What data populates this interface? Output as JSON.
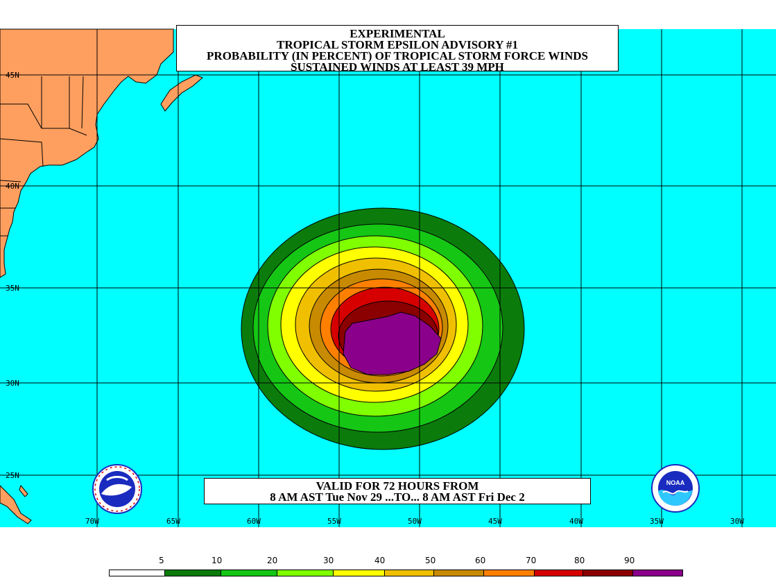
{
  "title": {
    "line1": "EXPERIMENTAL",
    "line2": "TROPICAL STORM EPSILON ADVISORY #1",
    "line3": "PROBABILITY (IN PERCENT) OF TROPICAL STORM FORCE WINDS",
    "line4": "SUSTAINED WINDS AT LEAST 39 MPH"
  },
  "valid": {
    "line1": "VALID FOR 72 HOURS FROM",
    "line2": "8 AM AST Tue Nov 29 ...TO... 8 AM AST Fri Dec 2"
  },
  "latitude_labels": [
    "45N",
    "40N",
    "35N",
    "30N",
    "25N"
  ],
  "longitude_labels": [
    "70W",
    "65W",
    "60W",
    "55W",
    "50W",
    "45W",
    "40W",
    "35W",
    "30W"
  ],
  "legend": {
    "thresholds": [
      "5",
      "10",
      "20",
      "30",
      "40",
      "50",
      "60",
      "70",
      "80",
      "90"
    ],
    "colors": [
      "#ffffff",
      "#0b7c0b",
      "#15c615",
      "#80ff00",
      "#ffff00",
      "#f0c000",
      "#c88a00",
      "#ff8000",
      "#d60000",
      "#8b0000",
      "#8b008b"
    ]
  },
  "colors": {
    "ocean": "#00ffff",
    "land": "#ff9f5f",
    "grid": "#000000"
  },
  "logos": {
    "left": "national-weather-service-logo",
    "right": "noaa-logo",
    "right_text": "NOAA"
  }
}
